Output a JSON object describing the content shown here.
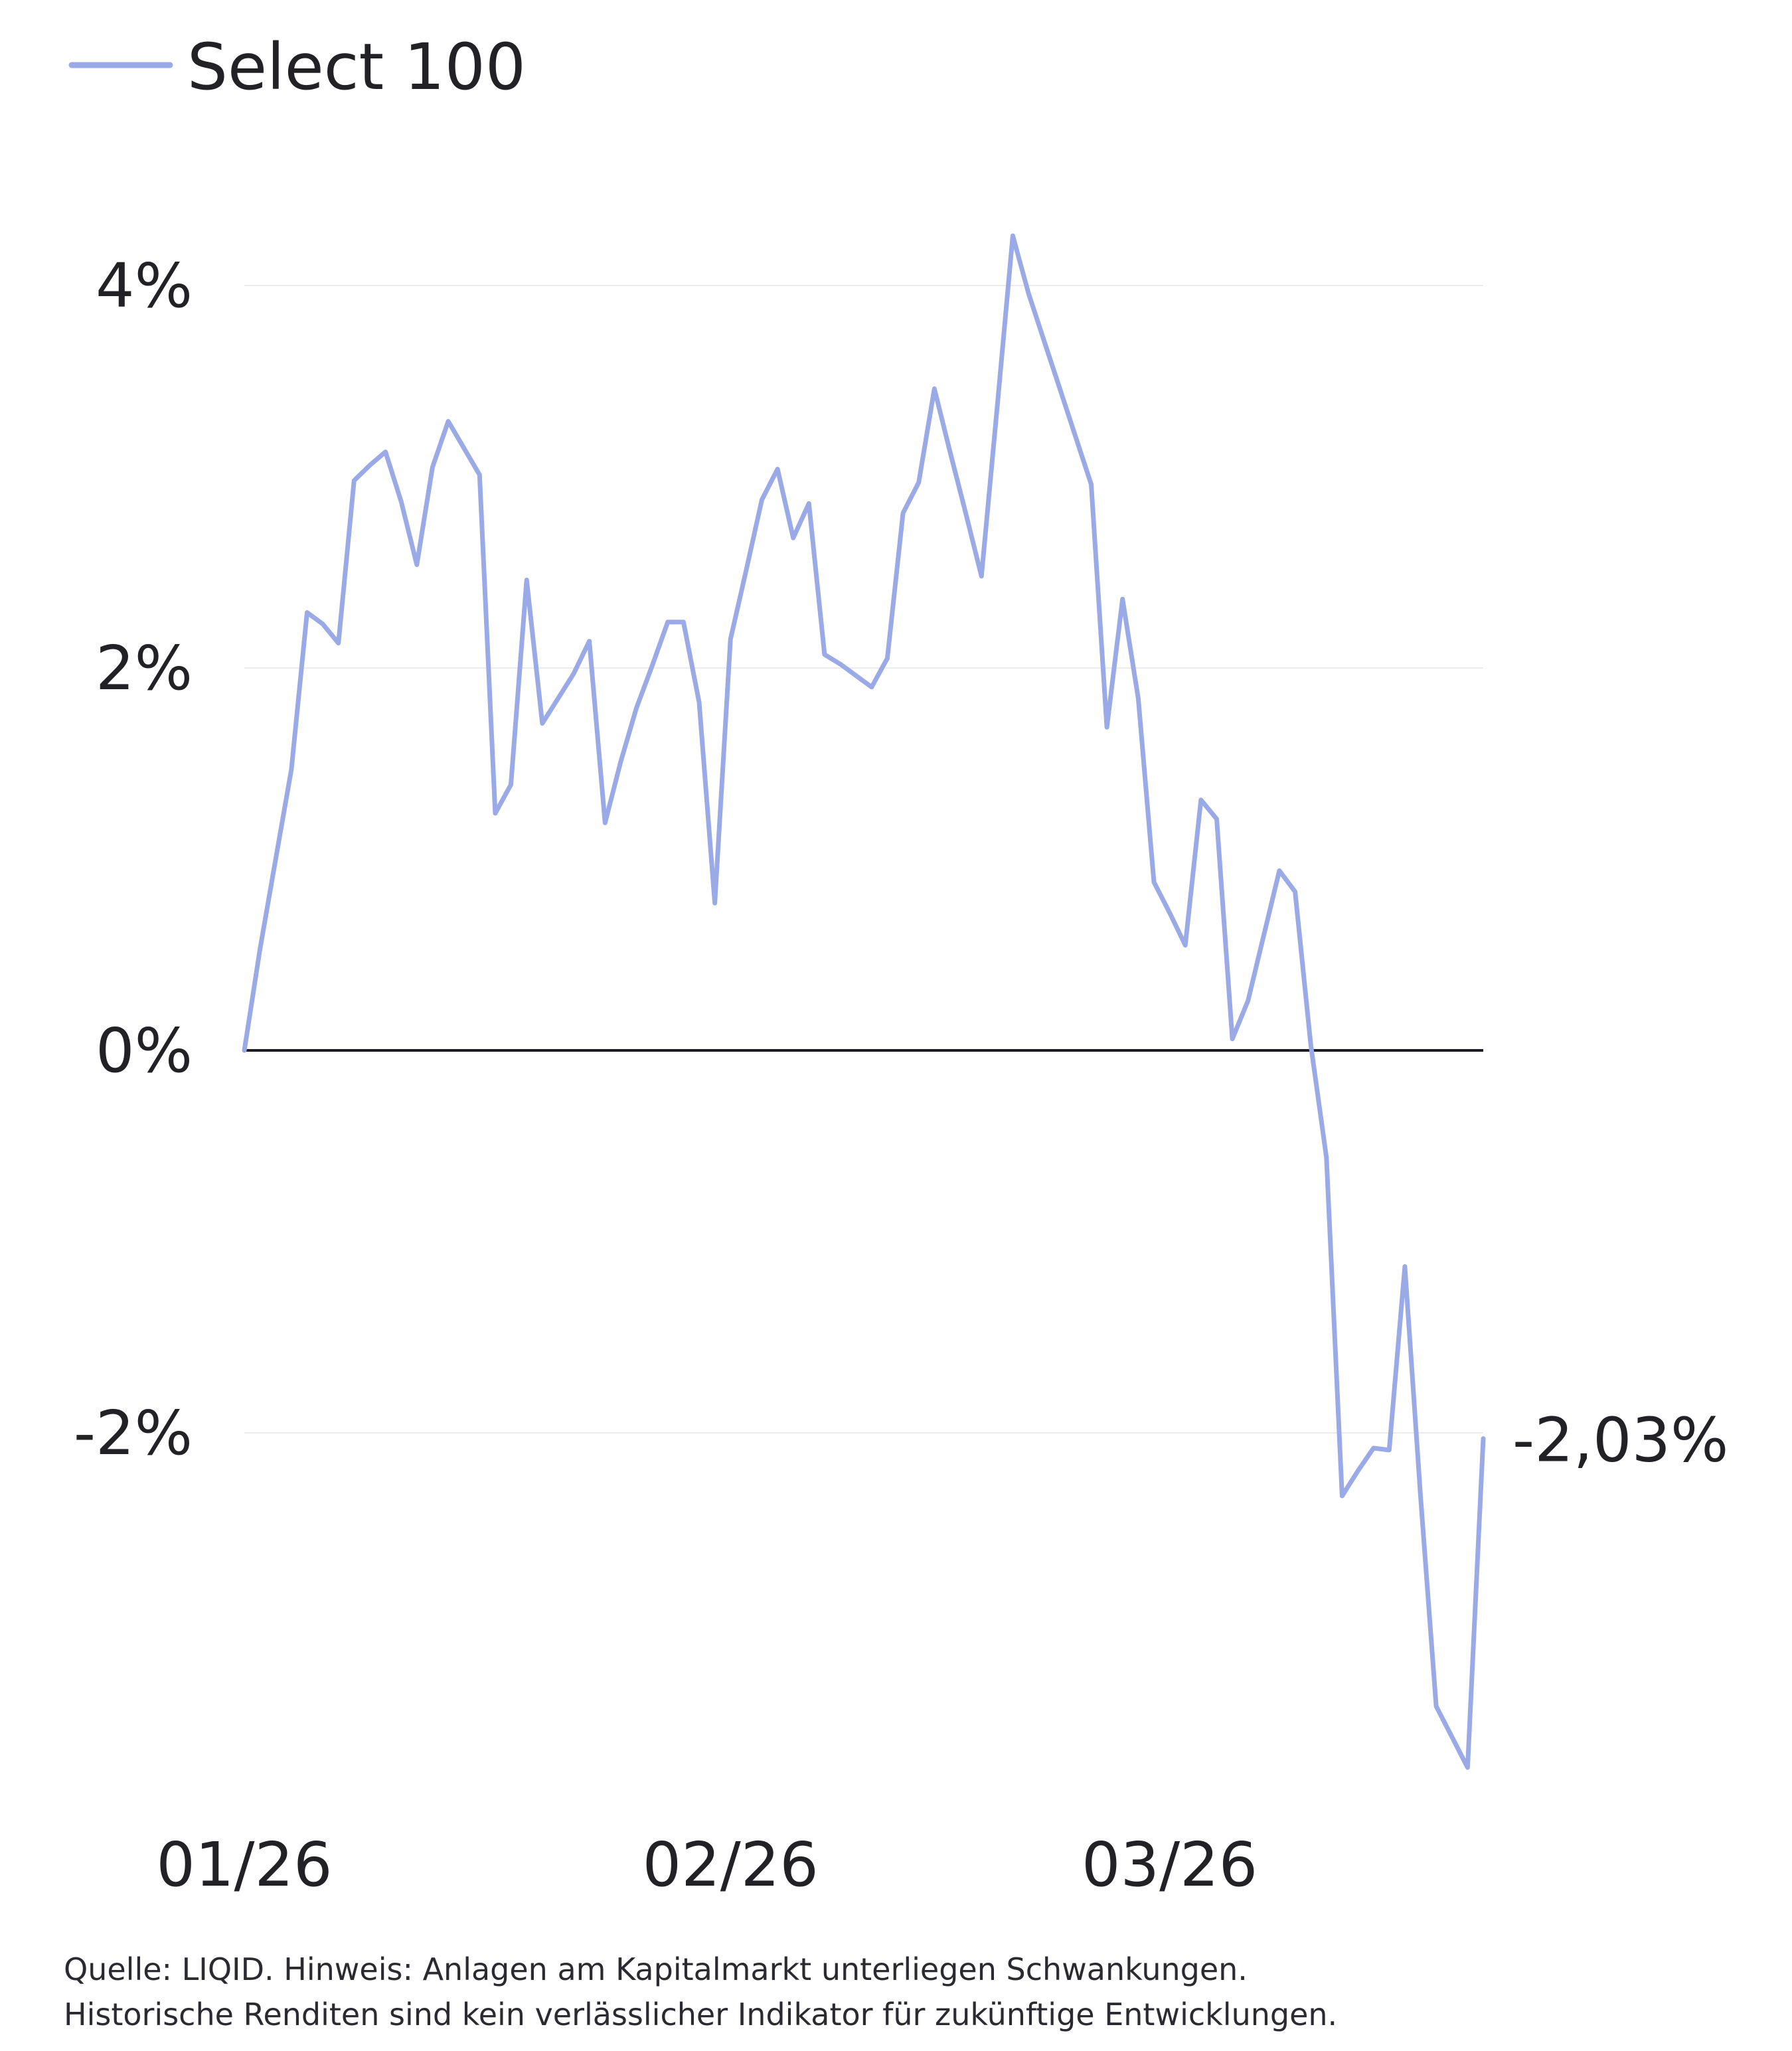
{
  "legend": {
    "series_name": "Select 100",
    "color": "#9aaae6"
  },
  "end_label": "-2,03%",
  "footnote": {
    "line1": "Quelle: LIQID. Hinweis: Anlagen am Kapitalmarkt unterliegen Schwankungen.",
    "line2": "Historische Renditen sind kein verlässlicher Indikator für zukünftige Entwicklungen."
  },
  "colors": {
    "line": "#9aaae6",
    "zero_line": "#1c1c22",
    "grid": "#ececf0",
    "text": "#222226"
  },
  "chart_data": {
    "type": "line",
    "title": "",
    "xlabel": "",
    "ylabel": "",
    "ylim": [
      -3.9,
      4.4
    ],
    "grid": true,
    "legend_position": "top-left",
    "y_ticks": [
      {
        "value": 4,
        "label": "4%"
      },
      {
        "value": 2,
        "label": "2%"
      },
      {
        "value": 0,
        "label": "0%"
      },
      {
        "value": -2,
        "label": "-2%"
      }
    ],
    "x_ticks": [
      {
        "index": 0,
        "label": "01/26"
      },
      {
        "index": 31,
        "label": "02/26"
      },
      {
        "index": 59,
        "label": "03/26"
      }
    ],
    "series": [
      {
        "name": "Select 100",
        "values": [
          0.0,
          0.53,
          1.0,
          1.47,
          2.29,
          2.23,
          2.13,
          2.98,
          3.06,
          3.13,
          2.87,
          2.54,
          3.05,
          3.29,
          3.15,
          3.01,
          1.24,
          1.39,
          2.46,
          1.71,
          1.84,
          1.97,
          2.14,
          1.19,
          1.51,
          1.79,
          2.01,
          2.24,
          2.24,
          1.82,
          0.77,
          2.15,
          2.51,
          2.88,
          3.04,
          2.68,
          2.86,
          2.07,
          2.02,
          1.96,
          1.9,
          2.05,
          2.81,
          2.97,
          3.46,
          3.13,
          2.81,
          2.48,
          3.36,
          4.26,
          3.96,
          3.71,
          3.46,
          3.21,
          2.96,
          1.69,
          2.36,
          1.84,
          0.88,
          0.72,
          0.55,
          1.31,
          1.21,
          0.06,
          0.26,
          0.6,
          0.94,
          0.83,
          0.03,
          -0.56,
          -2.33,
          -2.2,
          -2.08,
          -2.09,
          -1.13,
          -2.33,
          -3.43,
          -3.59,
          -3.75,
          -2.03
        ]
      }
    ]
  }
}
